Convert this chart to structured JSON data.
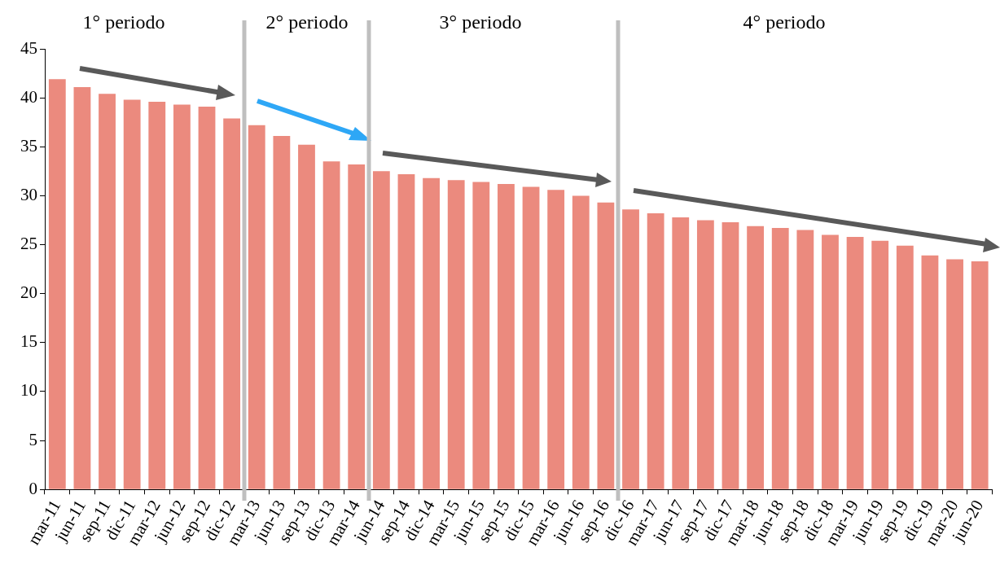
{
  "chart_data": {
    "type": "bar",
    "categories": [
      "mar-11",
      "jun-11",
      "sep-11",
      "dic-11",
      "mar-12",
      "jun-12",
      "sep-12",
      "dic-12",
      "mar-13",
      "jun-13",
      "sep-13",
      "dic-13",
      "mar-14",
      "jun-14",
      "sep-14",
      "dic-14",
      "mar-15",
      "jun-15",
      "sep-15",
      "dic-15",
      "mar-16",
      "jun-16",
      "sep-16",
      "dic-16",
      "mar-17",
      "jun-17",
      "sep-17",
      "dic-17",
      "mar-18",
      "jun-18",
      "sep-18",
      "dic-18",
      "mar-19",
      "jun-19",
      "sep-19",
      "dic-19",
      "mar-20",
      "jun-20"
    ],
    "values": [
      41.9,
      41.1,
      40.4,
      39.8,
      39.6,
      39.3,
      39.1,
      37.9,
      37.2,
      36.1,
      35.2,
      33.5,
      33.2,
      32.5,
      32.2,
      31.8,
      31.6,
      31.4,
      31.2,
      30.9,
      30.6,
      30.0,
      29.3,
      28.6,
      28.2,
      27.8,
      27.5,
      27.3,
      26.9,
      26.7,
      26.5,
      26.0,
      25.8,
      25.4,
      24.9,
      23.9,
      23.5,
      23.3
    ],
    "color": "#eb8a7e",
    "ylim": [
      0,
      45
    ],
    "yticks": [
      0,
      5,
      10,
      15,
      20,
      25,
      30,
      35,
      40,
      45
    ],
    "annotations": [
      "1° periodo",
      "2° periodo",
      "3° periodo",
      "4° periodo"
    ],
    "legend": false
  }
}
